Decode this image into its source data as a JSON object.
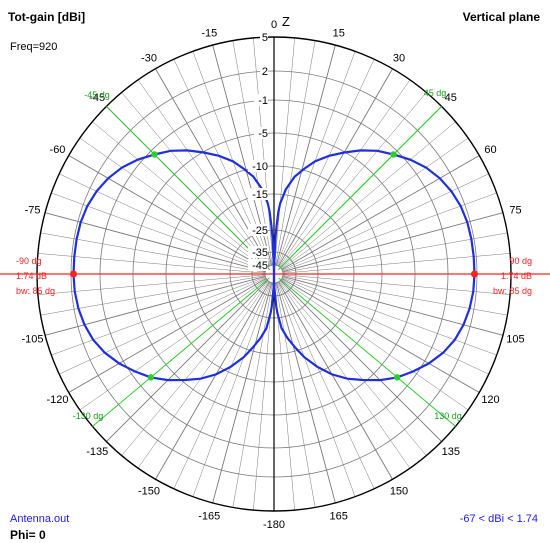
{
  "header": {
    "title_left": "Tot-gain [dBi]",
    "title_right": "Vertical plane",
    "freq": "Freq=920",
    "file": "Antenna.out",
    "phi": "Phi= 0",
    "range": "-67 < dBi < 1.74"
  },
  "colors": {
    "pattern": "#1f2fe0",
    "main_axis": "#ff2020",
    "half_power_lines": "#2ecc2e",
    "grid": "#7a7a7a",
    "axis": "#000000"
  },
  "chart_data": {
    "type": "polar",
    "title": "Tot-gain [dBi]",
    "subtitle": "Vertical plane",
    "radial_unit": "dBi",
    "radial_ticks": [
      5,
      2,
      -1,
      -5,
      -10,
      -15,
      -25,
      -35,
      -45
    ],
    "radial_tick_labels": [
      "5",
      "2",
      "-1",
      "-5",
      "-10",
      "-15",
      "-25",
      "-35",
      "-45"
    ],
    "angle_ticks": [
      0,
      15,
      30,
      45,
      60,
      75,
      90,
      105,
      120,
      135,
      150,
      165,
      180,
      -165,
      -150,
      -135,
      -120,
      -105,
      -90,
      -75,
      -60,
      -45,
      -30,
      -15
    ],
    "angle_tick_labels": [
      "0",
      "15",
      "30",
      "45",
      "60",
      "75",
      "",
      "105",
      "120",
      "135",
      "150",
      "165",
      "-180",
      "-165",
      "-150",
      "-135",
      "-120",
      "-105",
      "",
      "-75",
      "-60",
      "-45",
      "-30",
      "-15"
    ],
    "zenith_label": "Z",
    "max_gain": {
      "angle_deg": 90,
      "value_dbi": 1.74
    },
    "markers": [
      {
        "angle": "90 dg",
        "gain": "1.74 dB",
        "beamwidth": "bw: 85 dg",
        "side": "right"
      },
      {
        "angle": "-90 dg",
        "gain": "1.74 dB",
        "beamwidth": "bw: 85 dg",
        "side": "left"
      }
    ],
    "half_power_labels": [
      "45 dg",
      "-45 dg",
      "130 dg",
      "-130 dg"
    ],
    "series": [
      {
        "angles_deg": [
          0,
          1,
          2,
          3,
          4,
          5,
          8,
          12,
          16,
          20,
          25,
          30,
          35,
          40,
          45,
          50,
          55,
          60,
          65,
          70,
          75,
          80,
          85,
          90,
          95,
          100,
          105,
          110,
          115,
          120,
          125,
          130,
          135,
          140,
          145,
          150,
          155,
          160,
          164,
          168,
          172,
          175,
          176,
          177,
          178,
          179,
          180
        ],
        "gain_dbi": [
          -67,
          -45,
          -30,
          -24,
          -20,
          -17.5,
          -14,
          -11.5,
          -9.8,
          -8.2,
          -6.6,
          -5.1,
          -3.8,
          -2.6,
          -1.6,
          -0.6,
          0.2,
          0.8,
          1.25,
          1.55,
          1.7,
          1.74,
          1.74,
          1.74,
          1.7,
          1.55,
          1.3,
          0.9,
          0.3,
          -0.5,
          -1.5,
          -2.6,
          -3.9,
          -5.4,
          -7.0,
          -8.8,
          -11.0,
          -13.5,
          -16,
          -19,
          -22,
          -27,
          -30,
          -35,
          -40,
          -48,
          -67
        ]
      }
    ]
  }
}
